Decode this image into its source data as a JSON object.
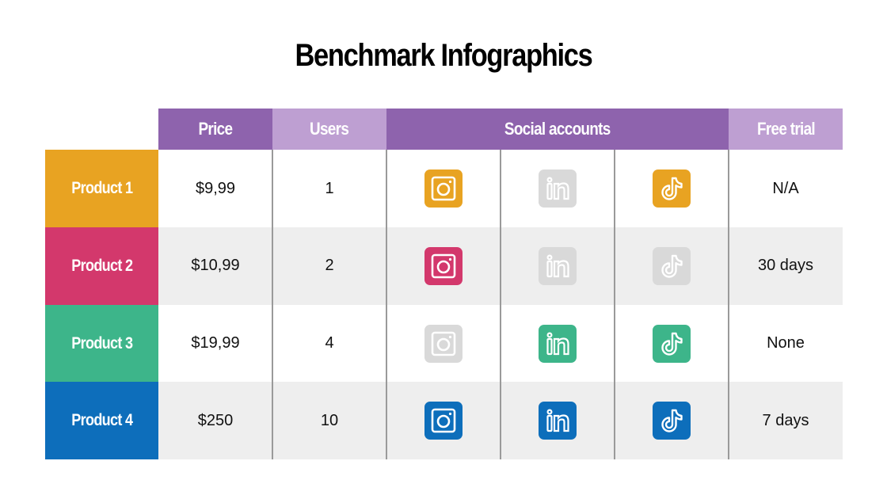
{
  "title": "Benchmark Infographics",
  "colors": {
    "header_dark": "#8E63AD",
    "header_light": "#BE9FD2",
    "inactive_icon": "#D9D9D9",
    "alt_row": "#EEEEEE",
    "divider": "#9A9A9A"
  },
  "headers": {
    "price": "Price",
    "users": "Users",
    "social": "Social accounts",
    "free_trial": "Free trial"
  },
  "rows": [
    {
      "product": "Product 1",
      "color": "#E8A322",
      "price": "$9,99",
      "users": "1",
      "instagram": true,
      "linkedin": false,
      "tiktok": true,
      "free_trial": "N/A"
    },
    {
      "product": "Product 2",
      "color": "#D3386C",
      "price": "$10,99",
      "users": "2",
      "instagram": true,
      "linkedin": false,
      "tiktok": false,
      "free_trial": "30 days"
    },
    {
      "product": "Product 3",
      "color": "#3DB58A",
      "price": "$19,99",
      "users": "4",
      "instagram": false,
      "linkedin": true,
      "tiktok": true,
      "free_trial": "None"
    },
    {
      "product": "Product 4",
      "color": "#0D6EBB",
      "price": "$250",
      "users": "10",
      "instagram": true,
      "linkedin": true,
      "tiktok": true,
      "free_trial": "7 days"
    }
  ],
  "icons": [
    "instagram-icon",
    "linkedin-icon",
    "tiktok-icon"
  ]
}
